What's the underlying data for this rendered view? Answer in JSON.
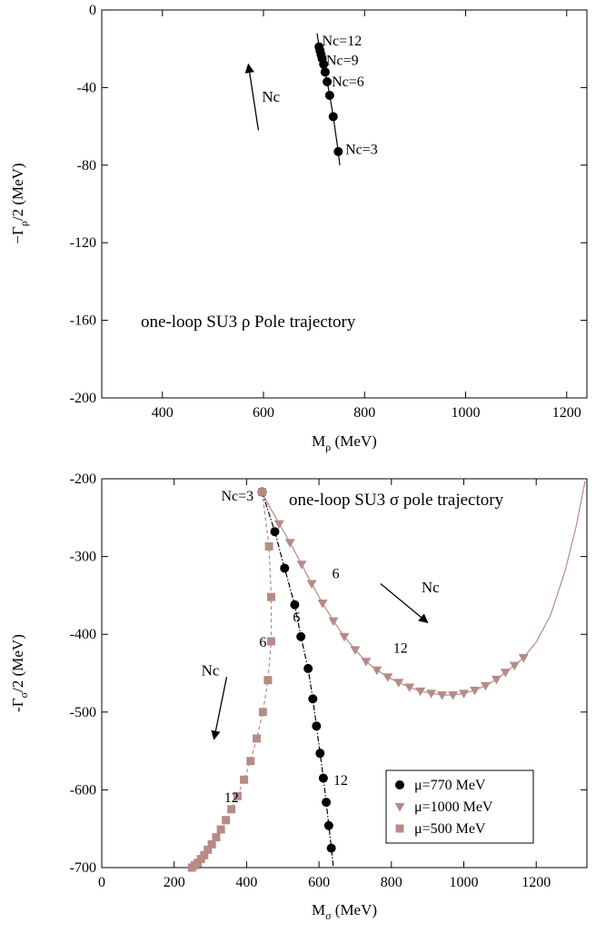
{
  "chart_data": [
    {
      "type": "scatter",
      "title": "",
      "annotation": "one-loop SU3 ρ Pole trajectory",
      "xlabel_main": "M",
      "xlabel_sub": "ρ",
      "xlabel_unit": " (MeV)",
      "ylabel_main": "−Γ",
      "ylabel_sub": "ρ",
      "ylabel_unit": "/2 (MeV)",
      "xlim": [
        280,
        1240
      ],
      "ylim": [
        -200,
        0
      ],
      "xticks": [
        400,
        600,
        800,
        1000,
        1200
      ],
      "yticks": [
        0,
        -40,
        -80,
        -120,
        -160,
        -200
      ],
      "grid": false,
      "legend": "none",
      "series": [
        {
          "name": "",
          "color": "#000000",
          "marker": "circle",
          "line": "solid",
          "points": [
            {
              "x": 748,
              "y": -73
            },
            {
              "x": 738,
              "y": -55
            },
            {
              "x": 731,
              "y": -44
            },
            {
              "x": 726,
              "y": -37
            },
            {
              "x": 722,
              "y": -32
            },
            {
              "x": 719,
              "y": -28
            },
            {
              "x": 716,
              "y": -25
            },
            {
              "x": 714,
              "y": -23
            },
            {
              "x": 712,
              "y": -21
            },
            {
              "x": 710,
              "y": -19
            }
          ],
          "curve": [
            {
              "x": 751,
              "y": -80
            },
            {
              "x": 748,
              "y": -73
            },
            {
              "x": 738,
              "y": -55
            },
            {
              "x": 731,
              "y": -44
            },
            {
              "x": 726,
              "y": -37
            },
            {
              "x": 722,
              "y": -32
            },
            {
              "x": 719,
              "y": -28
            },
            {
              "x": 716,
              "y": -25
            },
            {
              "x": 714,
              "y": -23
            },
            {
              "x": 712,
              "y": -21
            },
            {
              "x": 710,
              "y": -19
            },
            {
              "x": 706,
              "y": -12
            }
          ]
        }
      ],
      "labels": [
        {
          "text": "Nc=12",
          "x": 716,
          "y": -16
        },
        {
          "text": "Nc=9",
          "x": 724,
          "y": -26
        },
        {
          "text": "Nc=6",
          "x": 735,
          "y": -37
        },
        {
          "text": "Nc=3",
          "x": 762,
          "y": -72
        }
      ],
      "arrows": [
        {
          "label": "Nc",
          "from": {
            "x": 590,
            "y": -62
          },
          "to": {
            "x": 570,
            "y": -28
          },
          "label_at": {
            "x": 597,
            "y": -45
          }
        }
      ]
    },
    {
      "type": "scatter",
      "title": "",
      "annotation": "one-loop SU3  σ  pole trajectory",
      "xlabel_main": "M",
      "xlabel_sub": "σ",
      "xlabel_unit": " (MeV)",
      "ylabel_main": "-Γ",
      "ylabel_sub": "σ",
      "ylabel_unit": "/2 (MeV)",
      "xlim": [
        0,
        1340
      ],
      "ylim": [
        -700,
        -200
      ],
      "xticks": [
        0,
        200,
        400,
        600,
        800,
        1000,
        1200
      ],
      "yticks": [
        -200,
        -300,
        -400,
        -500,
        -600,
        -700
      ],
      "grid": false,
      "legend": "bottom-right",
      "series": [
        {
          "name": "μ=770  MeV",
          "color": "#000000",
          "marker": "circle",
          "line": "dashdot",
          "points": [
            {
              "x": 443,
              "y": -217
            },
            {
              "x": 478,
              "y": -268
            },
            {
              "x": 505,
              "y": -315
            },
            {
              "x": 533,
              "y": -362
            },
            {
              "x": 550,
              "y": -403
            },
            {
              "x": 570,
              "y": -444
            },
            {
              "x": 583,
              "y": -483
            },
            {
              "x": 593,
              "y": -518
            },
            {
              "x": 603,
              "y": -553
            },
            {
              "x": 612,
              "y": -585
            },
            {
              "x": 620,
              "y": -616
            },
            {
              "x": 627,
              "y": -646
            },
            {
              "x": 634,
              "y": -675
            }
          ],
          "curve": [
            {
              "x": 443,
              "y": -217
            },
            {
              "x": 478,
              "y": -268
            },
            {
              "x": 505,
              "y": -315
            },
            {
              "x": 533,
              "y": -362
            },
            {
              "x": 550,
              "y": -403
            },
            {
              "x": 570,
              "y": -444
            },
            {
              "x": 583,
              "y": -483
            },
            {
              "x": 593,
              "y": -518
            },
            {
              "x": 603,
              "y": -553
            },
            {
              "x": 612,
              "y": -585
            },
            {
              "x": 620,
              "y": -616
            },
            {
              "x": 627,
              "y": -646
            },
            {
              "x": 634,
              "y": -675
            },
            {
              "x": 640,
              "y": -700
            }
          ]
        },
        {
          "name": "μ=1000 MeV",
          "color": "#b88a86",
          "marker": "triangle-down",
          "line": "solid",
          "points": [
            {
              "x": 490,
              "y": -258
            },
            {
              "x": 520,
              "y": -282
            },
            {
              "x": 552,
              "y": -310
            },
            {
              "x": 580,
              "y": -335
            },
            {
              "x": 610,
              "y": -360
            },
            {
              "x": 640,
              "y": -383
            },
            {
              "x": 670,
              "y": -403
            },
            {
              "x": 700,
              "y": -420
            },
            {
              "x": 730,
              "y": -435
            },
            {
              "x": 760,
              "y": -446
            },
            {
              "x": 790,
              "y": -455
            },
            {
              "x": 820,
              "y": -462
            },
            {
              "x": 850,
              "y": -468
            },
            {
              "x": 880,
              "y": -473
            },
            {
              "x": 910,
              "y": -476
            },
            {
              "x": 940,
              "y": -478
            },
            {
              "x": 970,
              "y": -478
            },
            {
              "x": 1000,
              "y": -476
            },
            {
              "x": 1030,
              "y": -472
            },
            {
              "x": 1060,
              "y": -466
            },
            {
              "x": 1090,
              "y": -458
            },
            {
              "x": 1115,
              "y": -449
            },
            {
              "x": 1140,
              "y": -440
            },
            {
              "x": 1165,
              "y": -430
            }
          ],
          "curve": [
            {
              "x": 443,
              "y": -217
            },
            {
              "x": 460,
              "y": -233
            },
            {
              "x": 490,
              "y": -258
            },
            {
              "x": 520,
              "y": -282
            },
            {
              "x": 552,
              "y": -310
            },
            {
              "x": 580,
              "y": -335
            },
            {
              "x": 610,
              "y": -360
            },
            {
              "x": 640,
              "y": -383
            },
            {
              "x": 670,
              "y": -403
            },
            {
              "x": 700,
              "y": -420
            },
            {
              "x": 730,
              "y": -435
            },
            {
              "x": 760,
              "y": -446
            },
            {
              "x": 790,
              "y": -455
            },
            {
              "x": 820,
              "y": -462
            },
            {
              "x": 850,
              "y": -468
            },
            {
              "x": 880,
              "y": -473
            },
            {
              "x": 910,
              "y": -476
            },
            {
              "x": 940,
              "y": -478
            },
            {
              "x": 970,
              "y": -478
            },
            {
              "x": 1000,
              "y": -476
            },
            {
              "x": 1030,
              "y": -472
            },
            {
              "x": 1060,
              "y": -466
            },
            {
              "x": 1090,
              "y": -458
            },
            {
              "x": 1115,
              "y": -449
            },
            {
              "x": 1140,
              "y": -440
            },
            {
              "x": 1165,
              "y": -430
            },
            {
              "x": 1200,
              "y": -410
            },
            {
              "x": 1240,
              "y": -375
            },
            {
              "x": 1280,
              "y": -318
            },
            {
              "x": 1310,
              "y": -262
            },
            {
              "x": 1335,
              "y": -203
            }
          ]
        },
        {
          "name": "μ=500 MeV",
          "color": "#b88a86",
          "marker": "square",
          "line": "dashed",
          "points": [
            {
              "x": 443,
              "y": -217
            },
            {
              "x": 462,
              "y": -287
            },
            {
              "x": 468,
              "y": -352
            },
            {
              "x": 468,
              "y": -409
            },
            {
              "x": 459,
              "y": -459
            },
            {
              "x": 445,
              "y": -500
            },
            {
              "x": 428,
              "y": -534
            },
            {
              "x": 411,
              "y": -563
            },
            {
              "x": 393,
              "y": -587
            },
            {
              "x": 375,
              "y": -608
            },
            {
              "x": 358,
              "y": -625
            },
            {
              "x": 343,
              "y": -639
            },
            {
              "x": 329,
              "y": -651
            },
            {
              "x": 316,
              "y": -661
            },
            {
              "x": 304,
              "y": -670
            },
            {
              "x": 293,
              "y": -677
            },
            {
              "x": 283,
              "y": -684
            },
            {
              "x": 274,
              "y": -689
            },
            {
              "x": 265,
              "y": -694
            },
            {
              "x": 257,
              "y": -697
            },
            {
              "x": 249,
              "y": -700
            }
          ],
          "curve": [
            {
              "x": 443,
              "y": -217
            },
            {
              "x": 462,
              "y": -287
            },
            {
              "x": 468,
              "y": -352
            },
            {
              "x": 468,
              "y": -409
            },
            {
              "x": 459,
              "y": -459
            },
            {
              "x": 445,
              "y": -500
            },
            {
              "x": 428,
              "y": -534
            },
            {
              "x": 411,
              "y": -563
            },
            {
              "x": 393,
              "y": -587
            },
            {
              "x": 375,
              "y": -608
            },
            {
              "x": 358,
              "y": -625
            },
            {
              "x": 343,
              "y": -639
            },
            {
              "x": 329,
              "y": -651
            },
            {
              "x": 316,
              "y": -661
            },
            {
              "x": 304,
              "y": -670
            },
            {
              "x": 293,
              "y": -677
            },
            {
              "x": 283,
              "y": -684
            },
            {
              "x": 274,
              "y": -689
            },
            {
              "x": 265,
              "y": -694
            },
            {
              "x": 257,
              "y": -697
            },
            {
              "x": 249,
              "y": -700
            }
          ]
        }
      ],
      "labels": [
        {
          "text": "Nc=3",
          "x": 330,
          "y": -222
        },
        {
          "text": "6",
          "x": 636,
          "y": -322
        },
        {
          "text": "6",
          "x": 528,
          "y": -378
        },
        {
          "text": "6",
          "x": 435,
          "y": -410
        },
        {
          "text": "12",
          "x": 805,
          "y": -418
        },
        {
          "text": "12",
          "x": 640,
          "y": -588
        },
        {
          "text": "12",
          "x": 338,
          "y": -610
        }
      ],
      "arrows": [
        {
          "label": "Nc",
          "from": {
            "x": 770,
            "y": -335
          },
          "to": {
            "x": 900,
            "y": -385
          },
          "label_at": {
            "x": 883,
            "y": -340
          }
        },
        {
          "label": "Nc",
          "from": {
            "x": 345,
            "y": -455
          },
          "to": {
            "x": 310,
            "y": -535
          },
          "label_at": {
            "x": 275,
            "y": -447
          }
        }
      ]
    }
  ]
}
